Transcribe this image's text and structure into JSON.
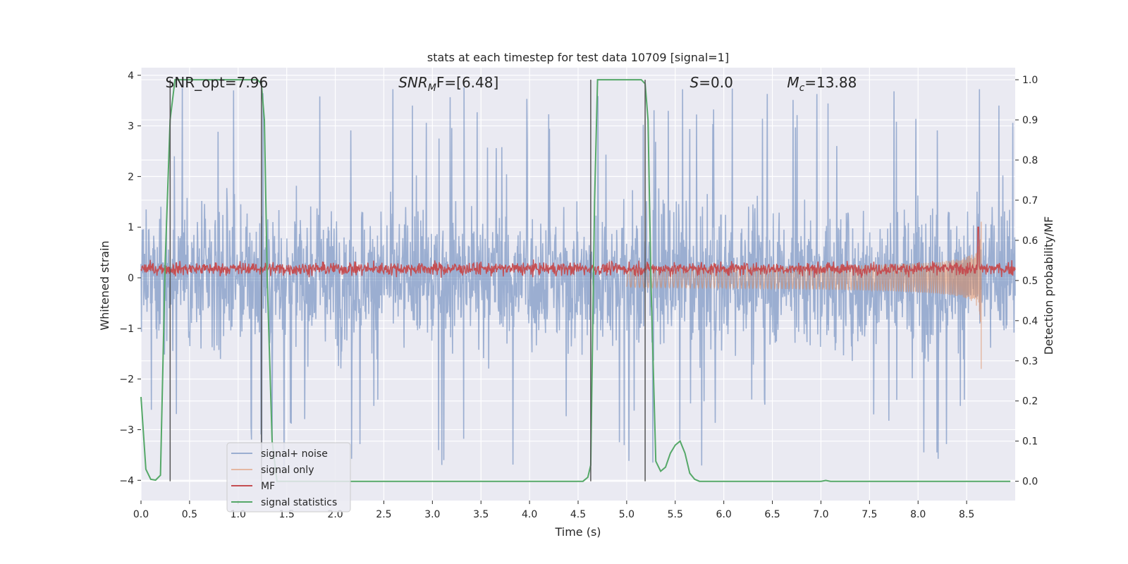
{
  "chart_data": {
    "type": "line",
    "title": "stats at each timestep for test data 10709 [signal=1]",
    "xlabel": "Time (s)",
    "ylabel_left": "Whitened strain",
    "ylabel_right": "Detection probability/MF",
    "xlim": [
      0.0,
      9.0
    ],
    "ylim_left": [
      -4.4,
      4.15
    ],
    "ylim_right": [
      -0.048,
      1.03
    ],
    "grid": true,
    "legend_position": "lower-left",
    "x_ticks": [
      0.0,
      0.5,
      1.0,
      1.5,
      2.0,
      2.5,
      3.0,
      3.5,
      4.0,
      4.5,
      5.0,
      5.5,
      6.0,
      6.5,
      7.0,
      7.5,
      8.0,
      8.5
    ],
    "x_tick_labels": [
      "0.0",
      "0.5",
      "1.0",
      "1.5",
      "2.0",
      "2.5",
      "3.0",
      "3.5",
      "4.0",
      "4.5",
      "5.0",
      "5.5",
      "6.0",
      "6.5",
      "7.0",
      "7.5",
      "8.0",
      "8.5"
    ],
    "y_left_ticks": [
      4,
      3,
      2,
      1,
      0,
      -1,
      -2,
      -3,
      -4
    ],
    "y_left_tick_labels": [
      "4",
      "3",
      "2",
      "1",
      "0",
      "−1",
      "−2",
      "−3",
      "−4"
    ],
    "y_right_ticks": [
      1.0,
      0.9,
      0.8,
      0.7,
      0.6,
      0.5,
      0.4,
      0.3,
      0.2,
      0.1,
      0.0
    ],
    "y_right_tick_labels": [
      "1.0",
      "0.9",
      "0.8",
      "0.7",
      "0.6",
      "0.5",
      "0.4",
      "0.3",
      "0.2",
      "0.1",
      "0.0"
    ],
    "annotations": [
      {
        "text": "SNR_opt=7.96",
        "x": 0.2
      },
      {
        "text": "SNR_MF=[6.48]",
        "x": 2.6,
        "main": "SNR",
        "sub": "M",
        "tail": "F=[6.48]"
      },
      {
        "text": "S=0.0",
        "x": 5.6,
        "main": "S",
        "tail": "=0.0"
      },
      {
        "text": "M_c=13.88",
        "x": 6.6,
        "main": "M",
        "sub": "c",
        "tail": "=13.88"
      }
    ],
    "vertical_markers_x": [
      0.3,
      1.24,
      4.63,
      5.19
    ],
    "series": [
      {
        "name": "signal+ noise",
        "color": "#4c72b0",
        "opacity": 0.5,
        "axis": "left",
        "style": "dense-noise",
        "envelope_typical": [
          -1.9,
          2.3
        ],
        "envelope_extreme": [
          -4.0,
          3.8
        ]
      },
      {
        "name": "signal only",
        "color": "#dd8452",
        "opacity": 0.5,
        "axis": "left",
        "style": "chirp",
        "chirp_start_x": 5.0,
        "chirp_end_x": 8.65,
        "peak_amplitude": 1.25
      },
      {
        "name": "MF",
        "color": "#c44e52",
        "axis": "left",
        "style": "dense-noise",
        "band": [
          0.0,
          0.45
        ],
        "spike_x": 8.62,
        "spike_value": 1.0
      },
      {
        "name": "signal statistics",
        "color": "#55a868",
        "axis": "right",
        "x": [
          0.0,
          0.05,
          0.1,
          0.15,
          0.2,
          0.25,
          0.3,
          0.35,
          0.4,
          0.6,
          0.8,
          1.0,
          1.1,
          1.2,
          1.24,
          1.27,
          1.3,
          1.35,
          1.4,
          1.5,
          2.0,
          2.5,
          3.0,
          3.5,
          4.0,
          4.5,
          4.55,
          4.6,
          4.63,
          4.67,
          4.7,
          4.8,
          5.0,
          5.1,
          5.15,
          5.19,
          5.22,
          5.25,
          5.3,
          5.35,
          5.4,
          5.45,
          5.5,
          5.55,
          5.6,
          5.65,
          5.7,
          5.75,
          5.8,
          5.9,
          6.0,
          6.5,
          7.0,
          7.05,
          7.1,
          7.5,
          8.0,
          8.5,
          8.95
        ],
        "y": [
          0.21,
          0.03,
          0.005,
          0.003,
          0.015,
          0.55,
          0.9,
          1.0,
          1.0,
          1.0,
          1.0,
          1.0,
          1.0,
          1.0,
          0.99,
          0.9,
          0.5,
          0.1,
          0.0,
          0.0,
          0.0,
          0.0,
          0.0,
          0.0,
          0.0,
          0.0,
          0.0,
          0.01,
          0.04,
          0.7,
          1.0,
          1.0,
          1.0,
          1.0,
          1.0,
          0.99,
          0.9,
          0.5,
          0.05,
          0.025,
          0.035,
          0.07,
          0.09,
          0.1,
          0.07,
          0.02,
          0.005,
          0.0,
          0.0,
          0.0,
          0.0,
          0.0,
          0.0,
          0.002,
          0.0,
          0.0,
          0.0,
          0.0,
          0.0
        ]
      }
    ]
  }
}
